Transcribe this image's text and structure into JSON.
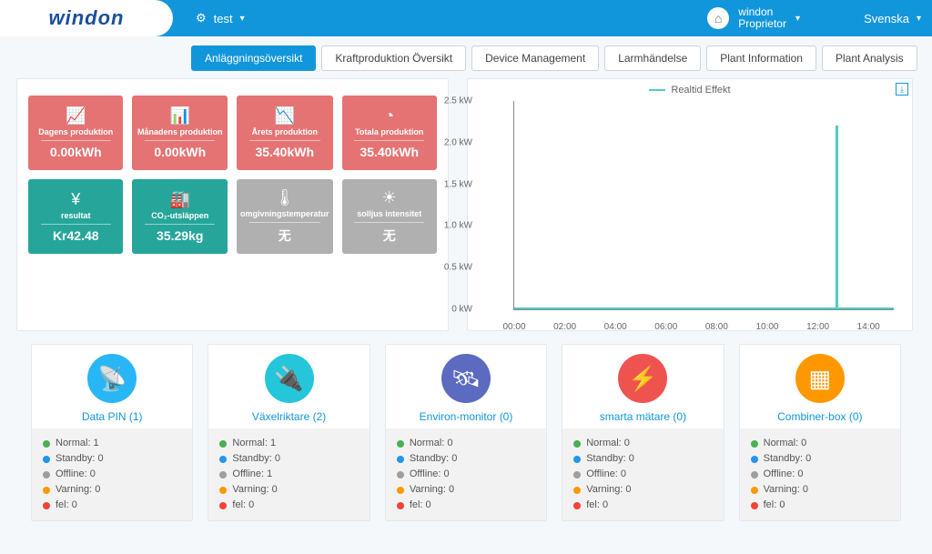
{
  "header": {
    "logo_text": "windon",
    "site": "test",
    "user_name": "windon",
    "user_role": "Proprietor",
    "language": "Svenska"
  },
  "tabs": [
    {
      "label": "Anläggningsöversikt",
      "active": true
    },
    {
      "label": "Kraftproduktion Översikt",
      "active": false
    },
    {
      "label": "Device Management",
      "active": false
    },
    {
      "label": "Larmhändelse",
      "active": false
    },
    {
      "label": "Plant Information",
      "active": false
    },
    {
      "label": "Plant Analysis",
      "active": false
    }
  ],
  "kpi": [
    {
      "label": "Dagens produktion",
      "value": "0.00kWh",
      "color": "red",
      "icon": "📈"
    },
    {
      "label": "Månadens produktion",
      "value": "0.00kWh",
      "color": "red",
      "icon": "📊"
    },
    {
      "label": "Årets produktion",
      "value": "35.40kWh",
      "color": "red",
      "icon": "📉"
    },
    {
      "label": "Totala produktion",
      "value": "35.40kWh",
      "color": "red",
      "icon": "◔"
    },
    {
      "label": "resultat",
      "value": "Kr42.48",
      "color": "teal",
      "icon": "¥"
    },
    {
      "label": "CO₂-utsläppen",
      "value": "35.29kg",
      "color": "teal",
      "icon": "🏭"
    },
    {
      "label": "omgivningstemperatur",
      "value": "无",
      "color": "grey",
      "icon": "🌡"
    },
    {
      "label": "solljus intensitet",
      "value": "无",
      "color": "grey",
      "icon": "☀"
    }
  ],
  "chart": {
    "legend": "Realtid Effekt",
    "series_color": "#4ecdc4",
    "background_color": "#ffffff",
    "axis_color": "#888888",
    "ylim": [
      0,
      2.5
    ],
    "y_ticks": [
      {
        "v": 0,
        "label": "0 kW"
      },
      {
        "v": 0.5,
        "label": "0.5 kW"
      },
      {
        "v": 1.0,
        "label": "1.0 kW"
      },
      {
        "v": 1.5,
        "label": "1.5 kW"
      },
      {
        "v": 2.0,
        "label": "2.0 kW"
      },
      {
        "v": 2.5,
        "label": "2.5 kW"
      }
    ],
    "xlim": [
      0,
      15
    ],
    "x_ticks": [
      {
        "v": 0,
        "label": "00:00"
      },
      {
        "v": 2,
        "label": "02:00"
      },
      {
        "v": 4,
        "label": "04:00"
      },
      {
        "v": 6,
        "label": "06:00"
      },
      {
        "v": 8,
        "label": "08:00"
      },
      {
        "v": 10,
        "label": "10:00"
      },
      {
        "v": 12,
        "label": "12:00"
      },
      {
        "v": 14,
        "label": "14:00"
      }
    ],
    "spike": {
      "x": 12.7,
      "height": 2.2
    }
  },
  "devices": [
    {
      "title": "Data PIN (1)",
      "color": "c-blue",
      "icon": "📡",
      "stats": {
        "normal": 1,
        "standby": 0,
        "offline": 0,
        "warning": 0,
        "fault": 0
      }
    },
    {
      "title": "Växelriktare (2)",
      "color": "c-cyan",
      "icon": "🔌",
      "stats": {
        "normal": 1,
        "standby": 0,
        "offline": 1,
        "warning": 0,
        "fault": 0
      }
    },
    {
      "title": "Environ-monitor (0)",
      "color": "c-purple",
      "icon": "🛰",
      "stats": {
        "normal": 0,
        "standby": 0,
        "offline": 0,
        "warning": 0,
        "fault": 0
      }
    },
    {
      "title": "smarta mätare (0)",
      "color": "c-red",
      "icon": "⚡",
      "stats": {
        "normal": 0,
        "standby": 0,
        "offline": 0,
        "warning": 0,
        "fault": 0
      }
    },
    {
      "title": "Combiner-box (0)",
      "color": "c-orange",
      "icon": "▦",
      "stats": {
        "normal": 0,
        "standby": 0,
        "offline": 0,
        "warning": 0,
        "fault": 0
      }
    }
  ],
  "stat_labels": {
    "normal": "Normal",
    "standby": "Standby",
    "offline": "Offline",
    "warning": "Varning",
    "fault": "fel"
  }
}
